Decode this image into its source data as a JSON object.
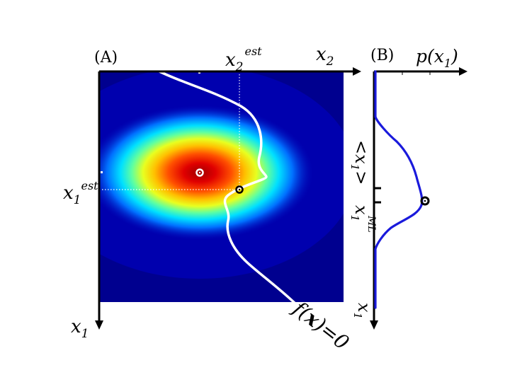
{
  "panel_a": {
    "tag": "(A)",
    "x2_axis_label": "x",
    "x2_axis_sub": "2",
    "x1_axis_label": "x",
    "x1_axis_sub": "1",
    "x2_est_label": "x",
    "x2_est_sub": "2",
    "x2_est_sup": "est",
    "x1_est_label": "x",
    "x1_est_sub": "1",
    "x1_est_sup": "est",
    "constraint_label_f": "f(",
    "constraint_label_x": "x",
    "constraint_label_rest": ")=0",
    "heatmap_colors": [
      "#00008f",
      "#0000ff",
      "#00a0ff",
      "#00ffff",
      "#80ff80",
      "#ffff00",
      "#ff8000",
      "#ff0000",
      "#b00000"
    ]
  },
  "panel_b": {
    "tag": "(B)",
    "density_label": "p(x",
    "density_sub": "1",
    "density_close": ")",
    "mean_label_open": "<x",
    "mean_label_sub": "1",
    "mean_label_close": ">",
    "ml_label": "x",
    "ml_sub": "1",
    "ml_sup": "ML",
    "x1_axis_label": "x",
    "x1_axis_sub": "1",
    "curve_color": "#1a1adc"
  }
}
